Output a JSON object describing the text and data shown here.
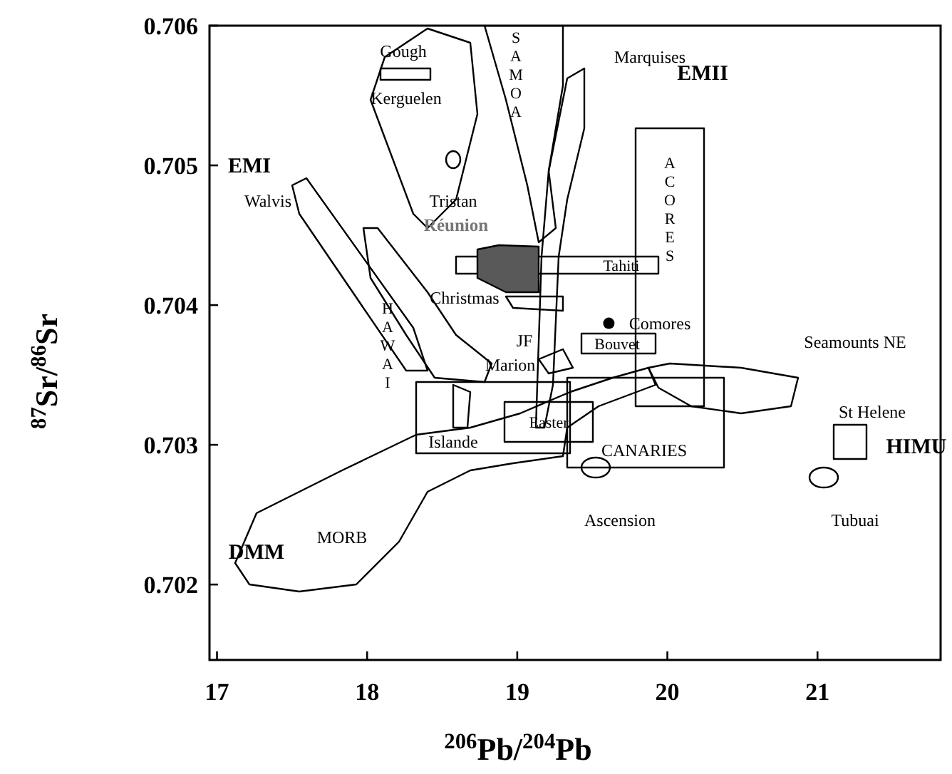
{
  "chart_data": {
    "type": "scatter",
    "xlabel": "$^{206}$Pb/$^{204}$Pb",
    "ylabel": "$^{87}$Sr/$^{86}$Sr",
    "xlim": [
      16.95,
      21.82
    ],
    "ylim": [
      0.70146,
      0.706
    ],
    "xticks": [
      17,
      18,
      19,
      20,
      21
    ],
    "yticks": [
      0.702,
      0.703,
      0.704,
      0.705,
      0.706
    ],
    "grid": false,
    "marker": "circle",
    "series": [
      {
        "color": "#000000",
        "x": [
          19.61
        ],
        "values": [
          0.70387
        ]
      }
    ],
    "annotations": [
      "SAMOA",
      "EMII",
      "EMI",
      "Walvis",
      "Gough",
      "Kerguelen",
      "Tristan",
      "Réunion",
      "Tahiti",
      "Christmas",
      "ACORES",
      "HAWAI",
      "Comores",
      "JF",
      "Marion",
      "Bouvet",
      "Seamounts NE",
      "Islande",
      "Easter",
      "St Helene",
      "HIMU",
      "CANARIES",
      "Ascension",
      "Tubuai",
      "MORB",
      "DMM",
      "Marquises"
    ]
  }
}
